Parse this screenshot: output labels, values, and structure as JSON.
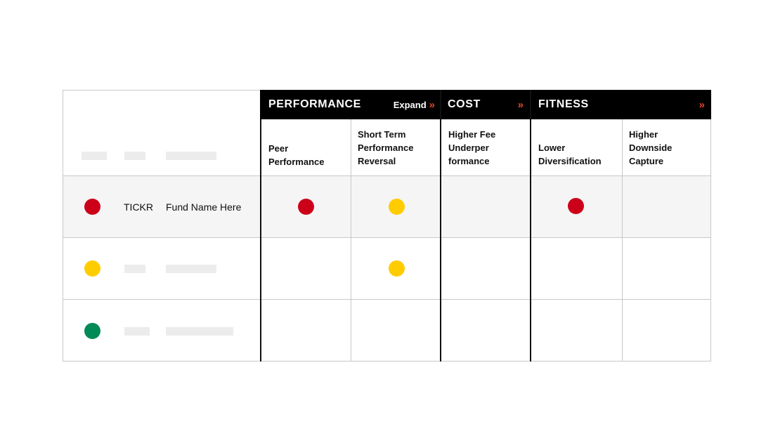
{
  "groups": {
    "performance": {
      "title": "PERFORMANCE",
      "expand_label": "Expand",
      "chevron": "»"
    },
    "cost": {
      "title": "COST",
      "chevron": "»"
    },
    "fitness": {
      "title": "FITNESS",
      "chevron": "»"
    }
  },
  "columns": {
    "peer_performance": [
      "Peer",
      "Performance"
    ],
    "short_term_reversal": [
      "Short Term",
      "Performance",
      "Reversal"
    ],
    "higher_fee": [
      "Higher Fee",
      "Underper",
      "formance"
    ],
    "lower_diversification": [
      "Lower",
      "Diversification"
    ],
    "higher_downside": [
      "Higher",
      "Downside",
      "Capture"
    ]
  },
  "rows": [
    {
      "status": "red",
      "ticker": "TICKR",
      "fund_name": "Fund Name Here",
      "peer_performance": "red",
      "short_term_reversal": "yellow",
      "higher_fee": null,
      "lower_diversification": "red",
      "higher_downside": null
    },
    {
      "status": "yellow",
      "ticker": "",
      "fund_name": "",
      "peer_performance": null,
      "short_term_reversal": "yellow",
      "higher_fee": null,
      "lower_diversification": null,
      "higher_downside": null
    },
    {
      "status": "green",
      "ticker": "",
      "fund_name": "",
      "peer_performance": null,
      "short_term_reversal": null,
      "higher_fee": null,
      "lower_diversification": null,
      "higher_downside": null
    }
  ],
  "colors": {
    "red": "#cc0018",
    "yellow": "#ffcc00",
    "green": "#008a55",
    "accent": "#e8462b",
    "header_bg": "#000000"
  }
}
